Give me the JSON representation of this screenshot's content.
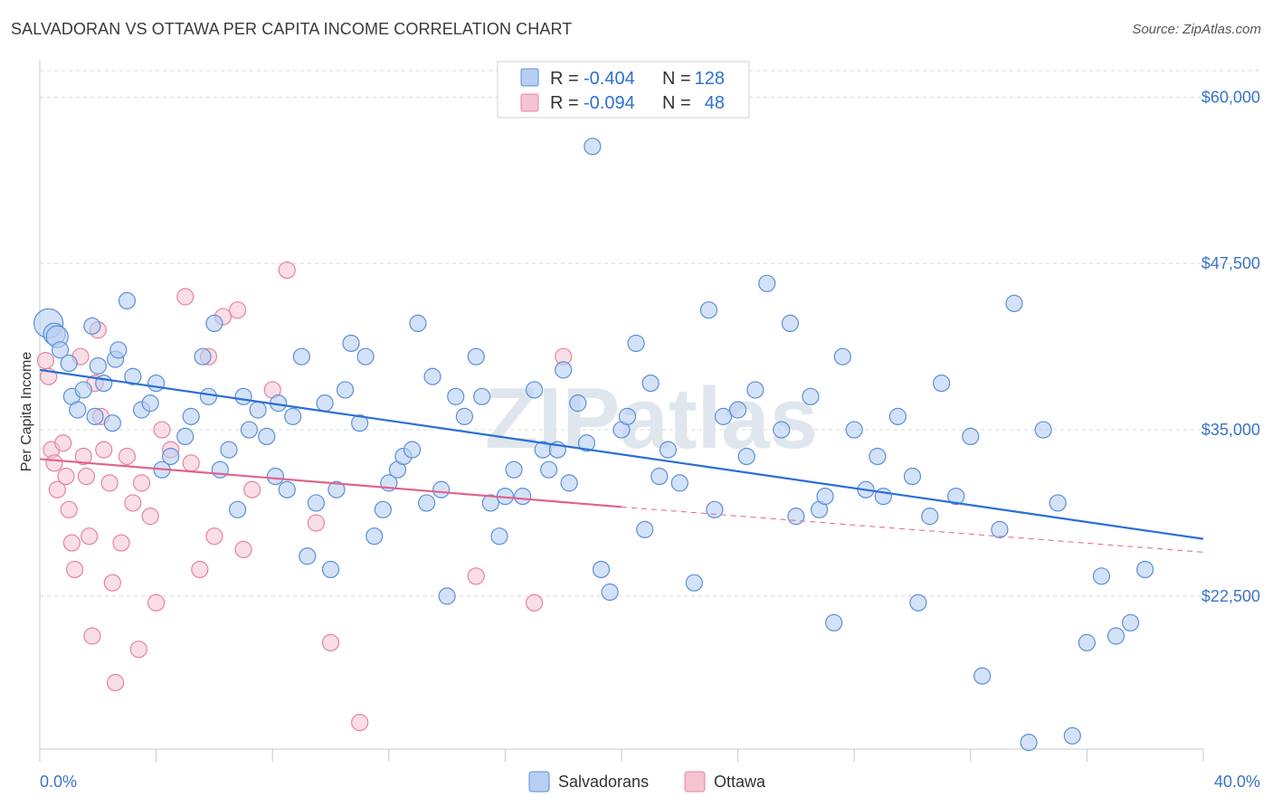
{
  "title": "SALVADORAN VS OTTAWA PER CAPITA INCOME CORRELATION CHART",
  "source": "Source: ZipAtlas.com",
  "watermark": "ZIPatlas",
  "colors": {
    "blue_fill": "#b7cff2",
    "blue_stroke": "#5b8fd9",
    "blue_line": "#2a6fd6",
    "pink_fill": "#f6c3d2",
    "pink_stroke": "#e8829f",
    "pink_line": "#e0648d",
    "axis_label": "#3a74c8",
    "grid": "#d8d8d8"
  },
  "legend": {
    "rows": [
      {
        "r_label": "R =",
        "r_value": "-0.404",
        "n_label": "N =",
        "n_value": "128"
      },
      {
        "r_label": "R =",
        "r_value": "-0.094",
        "n_label": "N =",
        "n_value": "48"
      }
    ]
  },
  "bottom_legend": [
    "Salvadorans",
    "Ottawa"
  ],
  "chart_data": {
    "type": "scatter",
    "xlabel": "",
    "ylabel": "Per Capita Income",
    "xlim": [
      0,
      40
    ],
    "ylim": [
      11000,
      62000
    ],
    "x_tick_labels": [
      "0.0%",
      "40.0%"
    ],
    "y_ticks": [
      60000,
      47500,
      35000,
      22500
    ],
    "y_tick_labels": [
      "$60,000",
      "$47,500",
      "$35,000",
      "$22,500"
    ],
    "grid": true,
    "series": [
      {
        "name": "Salvadorans",
        "trend": {
          "x": [
            0,
            40
          ],
          "y": [
            39500,
            26800
          ]
        },
        "points": [
          [
            0.3,
            43000
          ],
          [
            0.5,
            42200
          ],
          [
            0.6,
            42000
          ],
          [
            0.7,
            41000
          ],
          [
            1.0,
            40000
          ],
          [
            1.1,
            37500
          ],
          [
            1.3,
            36500
          ],
          [
            1.5,
            38000
          ],
          [
            1.8,
            42800
          ],
          [
            1.9,
            36000
          ],
          [
            2.0,
            39800
          ],
          [
            2.2,
            38500
          ],
          [
            2.5,
            35500
          ],
          [
            2.6,
            40300
          ],
          [
            2.7,
            41000
          ],
          [
            3.0,
            44700
          ],
          [
            3.2,
            39000
          ],
          [
            3.5,
            36500
          ],
          [
            3.8,
            37000
          ],
          [
            4.0,
            38500
          ],
          [
            4.2,
            32000
          ],
          [
            4.5,
            33000
          ],
          [
            5.0,
            34500
          ],
          [
            5.2,
            36000
          ],
          [
            5.6,
            40500
          ],
          [
            5.8,
            37500
          ],
          [
            6.0,
            43000
          ],
          [
            6.2,
            32000
          ],
          [
            6.5,
            33500
          ],
          [
            6.8,
            29000
          ],
          [
            7.0,
            37500
          ],
          [
            7.2,
            35000
          ],
          [
            7.5,
            36500
          ],
          [
            7.8,
            34500
          ],
          [
            8.1,
            31500
          ],
          [
            8.2,
            37000
          ],
          [
            8.5,
            30500
          ],
          [
            8.7,
            36000
          ],
          [
            9.0,
            40500
          ],
          [
            9.2,
            25500
          ],
          [
            9.5,
            29500
          ],
          [
            9.8,
            37000
          ],
          [
            10.0,
            24500
          ],
          [
            10.2,
            30500
          ],
          [
            10.5,
            38000
          ],
          [
            10.7,
            41500
          ],
          [
            11.0,
            35500
          ],
          [
            11.2,
            40500
          ],
          [
            11.5,
            27000
          ],
          [
            11.8,
            29000
          ],
          [
            12.0,
            31000
          ],
          [
            12.3,
            32000
          ],
          [
            12.5,
            33000
          ],
          [
            12.8,
            33500
          ],
          [
            13.0,
            43000
          ],
          [
            13.3,
            29500
          ],
          [
            13.5,
            39000
          ],
          [
            13.8,
            30500
          ],
          [
            14.0,
            22500
          ],
          [
            14.3,
            37500
          ],
          [
            14.6,
            36000
          ],
          [
            15.0,
            40500
          ],
          [
            15.2,
            37500
          ],
          [
            15.5,
            29500
          ],
          [
            15.8,
            27000
          ],
          [
            16.0,
            30000
          ],
          [
            16.3,
            32000
          ],
          [
            16.6,
            30000
          ],
          [
            17.0,
            38000
          ],
          [
            17.3,
            33500
          ],
          [
            17.5,
            32000
          ],
          [
            17.8,
            33500
          ],
          [
            18.0,
            39500
          ],
          [
            18.2,
            31000
          ],
          [
            18.5,
            37000
          ],
          [
            18.8,
            34000
          ],
          [
            19.0,
            56300
          ],
          [
            19.3,
            24500
          ],
          [
            19.6,
            22800
          ],
          [
            20.0,
            35000
          ],
          [
            20.2,
            36000
          ],
          [
            20.5,
            41500
          ],
          [
            20.8,
            27500
          ],
          [
            21.0,
            38500
          ],
          [
            21.3,
            31500
          ],
          [
            21.6,
            33500
          ],
          [
            22.0,
            31000
          ],
          [
            22.5,
            23500
          ],
          [
            23.0,
            44000
          ],
          [
            23.2,
            29000
          ],
          [
            23.5,
            36000
          ],
          [
            24.0,
            36500
          ],
          [
            24.3,
            33000
          ],
          [
            24.6,
            38000
          ],
          [
            25.0,
            46000
          ],
          [
            25.5,
            35000
          ],
          [
            25.8,
            43000
          ],
          [
            26.0,
            28500
          ],
          [
            26.5,
            37500
          ],
          [
            26.8,
            29000
          ],
          [
            27.0,
            30000
          ],
          [
            27.3,
            20500
          ],
          [
            27.6,
            40500
          ],
          [
            28.0,
            35000
          ],
          [
            28.4,
            30500
          ],
          [
            28.8,
            33000
          ],
          [
            29.0,
            30000
          ],
          [
            29.5,
            36000
          ],
          [
            30.0,
            31500
          ],
          [
            30.2,
            22000
          ],
          [
            30.6,
            28500
          ],
          [
            31.0,
            38500
          ],
          [
            31.5,
            30000
          ],
          [
            32.0,
            34500
          ],
          [
            32.4,
            16500
          ],
          [
            33.0,
            27500
          ],
          [
            33.5,
            44500
          ],
          [
            34.0,
            11500
          ],
          [
            34.5,
            35000
          ],
          [
            35.0,
            29500
          ],
          [
            35.5,
            12000
          ],
          [
            36.0,
            19000
          ],
          [
            36.5,
            24000
          ],
          [
            37.0,
            19500
          ],
          [
            37.5,
            20500
          ],
          [
            38.0,
            24500
          ]
        ]
      },
      {
        "name": "Ottawa",
        "trend_solid": {
          "x": [
            0,
            20
          ],
          "y": [
            32800,
            29200
          ]
        },
        "trend_dashed": {
          "x": [
            20,
            40
          ],
          "y": [
            29200,
            25800
          ]
        },
        "points": [
          [
            0.2,
            40200
          ],
          [
            0.3,
            39000
          ],
          [
            0.4,
            33500
          ],
          [
            0.5,
            32500
          ],
          [
            0.6,
            30500
          ],
          [
            0.8,
            34000
          ],
          [
            0.9,
            31500
          ],
          [
            1.0,
            29000
          ],
          [
            1.1,
            26500
          ],
          [
            1.2,
            24500
          ],
          [
            1.4,
            40500
          ],
          [
            1.5,
            33000
          ],
          [
            1.6,
            31500
          ],
          [
            1.7,
            27000
          ],
          [
            1.8,
            19500
          ],
          [
            1.9,
            38500
          ],
          [
            2.0,
            42500
          ],
          [
            2.1,
            36000
          ],
          [
            2.2,
            33500
          ],
          [
            2.4,
            31000
          ],
          [
            2.5,
            23500
          ],
          [
            2.6,
            16000
          ],
          [
            2.8,
            26500
          ],
          [
            3.0,
            33000
          ],
          [
            3.2,
            29500
          ],
          [
            3.4,
            18500
          ],
          [
            3.5,
            31000
          ],
          [
            3.8,
            28500
          ],
          [
            4.0,
            22000
          ],
          [
            4.2,
            35000
          ],
          [
            4.5,
            33500
          ],
          [
            5.0,
            45000
          ],
          [
            5.2,
            32500
          ],
          [
            5.5,
            24500
          ],
          [
            5.8,
            40500
          ],
          [
            6.0,
            27000
          ],
          [
            6.3,
            43500
          ],
          [
            6.8,
            44000
          ],
          [
            7.0,
            26000
          ],
          [
            7.3,
            30500
          ],
          [
            8.0,
            38000
          ],
          [
            8.5,
            47000
          ],
          [
            9.5,
            28000
          ],
          [
            10.0,
            19000
          ],
          [
            11.0,
            13000
          ],
          [
            15.0,
            24000
          ],
          [
            17.0,
            22000
          ],
          [
            18.0,
            40500
          ]
        ]
      }
    ]
  }
}
